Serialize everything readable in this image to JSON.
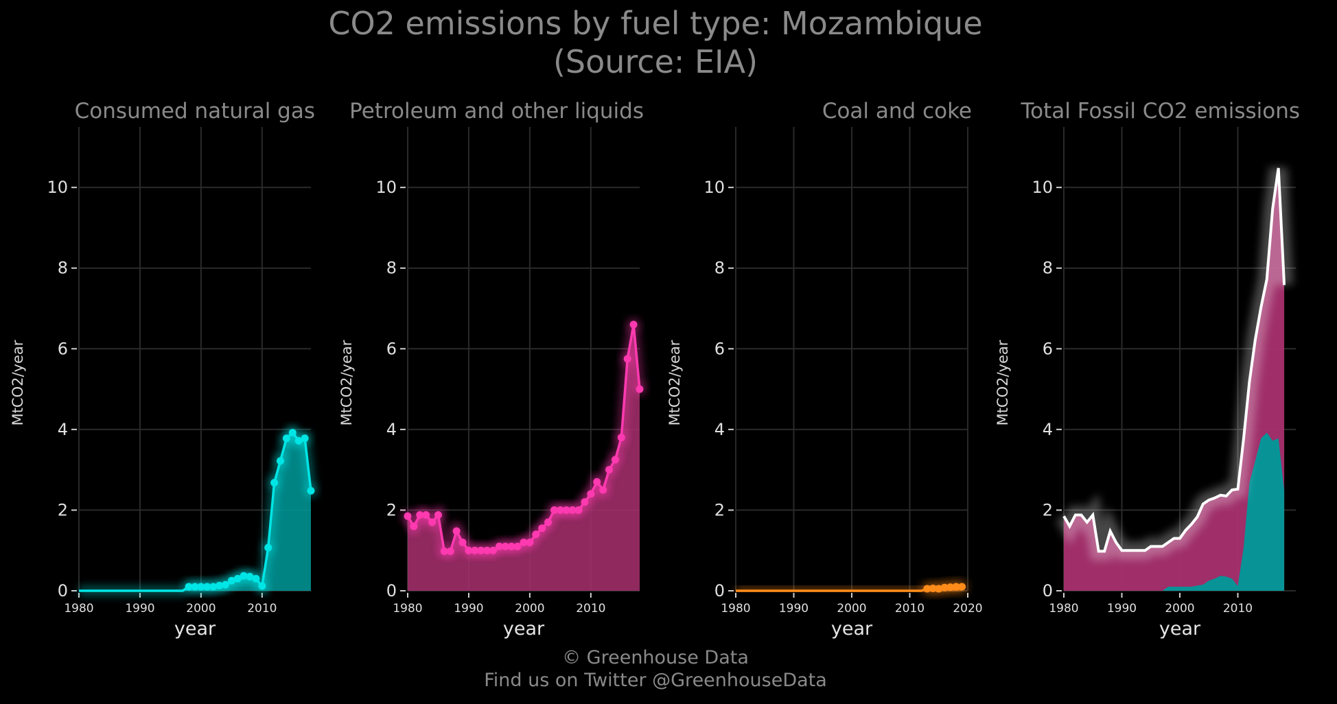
{
  "title_line1": "CO2 emissions by fuel type: Mozambique",
  "title_line2": "(Source: EIA)",
  "footer_line1": "© Greenhouse Data",
  "footer_line2": "Find us on Twitter @GreenhouseData",
  "chart_data": [
    {
      "type": "area",
      "title": "Consumed natural gas",
      "xlabel": "year",
      "ylabel": "MtCO2/year",
      "xlim": [
        1980,
        2018
      ],
      "ylim": [
        0,
        11.5
      ],
      "xticks": [
        1980,
        1990,
        2000,
        2010
      ],
      "yticks": [
        0,
        2,
        4,
        6,
        8,
        10
      ],
      "color": "#00e5e5",
      "fill": "#009a9a",
      "grid": true,
      "x": [
        1980,
        1981,
        1982,
        1983,
        1984,
        1985,
        1986,
        1987,
        1988,
        1989,
        1990,
        1991,
        1992,
        1993,
        1994,
        1995,
        1996,
        1997,
        1998,
        1999,
        2000,
        2001,
        2002,
        2003,
        2004,
        2005,
        2006,
        2007,
        2008,
        2009,
        2010,
        2011,
        2012,
        2013,
        2014,
        2015,
        2016,
        2017,
        2018
      ],
      "y": [
        0,
        0,
        0,
        0,
        0,
        0,
        0,
        0,
        0,
        0,
        0,
        0,
        0,
        0,
        0,
        0,
        0,
        0,
        0.1,
        0.1,
        0.1,
        0.1,
        0.1,
        0.13,
        0.15,
        0.25,
        0.3,
        0.37,
        0.35,
        0.3,
        0.12,
        1.07,
        2.68,
        3.22,
        3.78,
        3.92,
        3.72,
        3.78,
        2.48
      ],
      "markers_from": 1998
    },
    {
      "type": "area",
      "title": "Petroleum and other liquids",
      "xlabel": "year",
      "ylabel": "MtCO2/year",
      "xlim": [
        1980,
        2018
      ],
      "ylim": [
        0,
        11.5
      ],
      "xticks": [
        1980,
        1990,
        2000,
        2010
      ],
      "yticks": [
        0,
        2,
        4,
        6,
        8,
        10
      ],
      "color": "#ff3ab0",
      "fill": "#a8306f",
      "grid": true,
      "x": [
        1980,
        1981,
        1982,
        1983,
        1984,
        1985,
        1986,
        1987,
        1988,
        1989,
        1990,
        1991,
        1992,
        1993,
        1994,
        1995,
        1996,
        1997,
        1998,
        1999,
        2000,
        2001,
        2002,
        2003,
        2004,
        2005,
        2006,
        2007,
        2008,
        2009,
        2010,
        2011,
        2012,
        2013,
        2014,
        2015,
        2016,
        2017,
        2018
      ],
      "y": [
        1.85,
        1.6,
        1.88,
        1.88,
        1.7,
        1.88,
        0.98,
        0.98,
        1.48,
        1.2,
        1.0,
        1.0,
        1.0,
        1.0,
        1.0,
        1.1,
        1.1,
        1.1,
        1.1,
        1.2,
        1.2,
        1.4,
        1.55,
        1.7,
        2.0,
        2.0,
        2.0,
        2.0,
        2.0,
        2.2,
        2.4,
        2.7,
        2.5,
        3.0,
        3.25,
        3.8,
        5.75,
        6.6,
        5.0
      ],
      "markers_from": 1980
    },
    {
      "type": "area",
      "title": "Coal and coke",
      "xlabel": "year",
      "ylabel": "MtCO2/year",
      "xlim": [
        1980,
        2020
      ],
      "ylim": [
        0,
        11.5
      ],
      "xticks": [
        1980,
        1990,
        2000,
        2010,
        2020
      ],
      "yticks": [
        0,
        2,
        4,
        6,
        8,
        10
      ],
      "color": "#ff8c1a",
      "fill": "#c06010",
      "grid": true,
      "x": [
        1980,
        1981,
        1982,
        1983,
        1984,
        1985,
        1986,
        1987,
        1988,
        1989,
        1990,
        1991,
        1992,
        1993,
        1994,
        1995,
        1996,
        1997,
        1998,
        1999,
        2000,
        2001,
        2002,
        2003,
        2004,
        2005,
        2006,
        2007,
        2008,
        2009,
        2010,
        2011,
        2012,
        2013,
        2014,
        2015,
        2016,
        2017,
        2018,
        2019
      ],
      "y": [
        0,
        0,
        0,
        0,
        0,
        0,
        0,
        0,
        0,
        0,
        0,
        0,
        0,
        0,
        0,
        0,
        0,
        0,
        0,
        0,
        0,
        0,
        0,
        0,
        0,
        0,
        0,
        0,
        0,
        0,
        0,
        0,
        0,
        0.05,
        0.06,
        0.05,
        0.08,
        0.09,
        0.1,
        0.1
      ],
      "markers_from": 2013
    },
    {
      "type": "area",
      "title": "Total Fossil CO2 emissions",
      "xlabel": "year",
      "ylabel": "MtCO2/year",
      "xlim": [
        1980,
        2020
      ],
      "ylim": [
        0,
        11.5
      ],
      "xticks": [
        1980,
        1990,
        2000,
        2010
      ],
      "yticks": [
        0,
        2,
        4,
        6,
        8,
        10
      ],
      "grid": true,
      "line_color": "#ffffff",
      "series": [
        {
          "name": "Petroleum and other liquids",
          "color": "#a8306f"
        },
        {
          "name": "Consumed natural gas",
          "color": "#009a9a"
        }
      ],
      "x": [
        1980,
        1981,
        1982,
        1983,
        1984,
        1985,
        1986,
        1987,
        1988,
        1989,
        1990,
        1991,
        1992,
        1993,
        1994,
        1995,
        1996,
        1997,
        1998,
        1999,
        2000,
        2001,
        2002,
        2003,
        2004,
        2005,
        2006,
        2007,
        2008,
        2009,
        2010,
        2011,
        2012,
        2013,
        2014,
        2015,
        2016,
        2017,
        2018
      ],
      "total": [
        1.85,
        1.6,
        1.88,
        1.88,
        1.7,
        1.88,
        0.98,
        0.98,
        1.48,
        1.2,
        1.0,
        1.0,
        1.0,
        1.0,
        1.0,
        1.1,
        1.1,
        1.1,
        1.2,
        1.3,
        1.3,
        1.5,
        1.65,
        1.83,
        2.15,
        2.25,
        2.3,
        2.37,
        2.35,
        2.5,
        2.52,
        3.77,
        5.18,
        6.22,
        7.03,
        7.72,
        9.47,
        10.48,
        7.58
      ]
    }
  ]
}
